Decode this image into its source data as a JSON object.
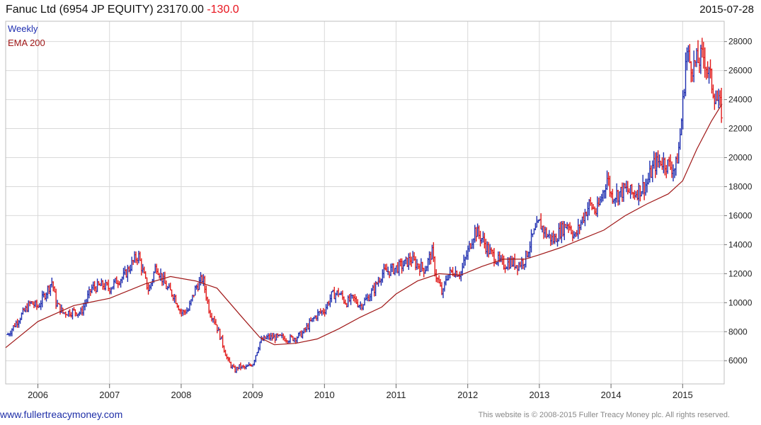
{
  "header": {
    "title_prefix": "Fanuc Ltd (6954 JP EQUITY) 23170.00",
    "change": "-130.0",
    "date": "2015-07-28"
  },
  "footer": {
    "website": "www.fullertreacymoney.com",
    "copyright": "This website is © 2008-2015 Fuller Treacy Money plc. All rights reserved."
  },
  "colors": {
    "up_bar": "#1f2fb0",
    "down_bar": "#e01818",
    "ema_line": "#a01818",
    "grid": "#d9d9d9",
    "change_text": "#e8141e"
  },
  "chart_data": {
    "type": "line",
    "subtype": "weekly high-low bars (up weeks blue, down weeks red) with 200 EMA overlay",
    "legend": [
      "Weekly",
      "EMA 200"
    ],
    "legend_position": "top-left",
    "grid": true,
    "x_ticks": [
      "2006",
      "2007",
      "2008",
      "2009",
      "2010",
      "2011",
      "2012",
      "2013",
      "2014",
      "2015"
    ],
    "x_range": [
      2005.55,
      2015.58
    ],
    "y_ticks": [
      6000,
      8000,
      10000,
      12000,
      14000,
      16000,
      18000,
      20000,
      22000,
      24000,
      26000,
      28000
    ],
    "y_axis_side": "right",
    "ylim": [
      4400,
      29400
    ],
    "series": [
      {
        "name": "Weekly",
        "x": [
          2005.58,
          2005.75,
          2005.9,
          2006.0,
          2006.1,
          2006.2,
          2006.25,
          2006.35,
          2006.5,
          2006.6,
          2006.75,
          2006.9,
          2007.0,
          2007.1,
          2007.2,
          2007.3,
          2007.4,
          2007.5,
          2007.55,
          2007.65,
          2007.75,
          2007.8,
          2007.9,
          2008.0,
          2008.1,
          2008.2,
          2008.3,
          2008.4,
          2008.45,
          2008.55,
          2008.65,
          2008.75,
          2008.8,
          2008.9,
          2009.0,
          2009.1,
          2009.2,
          2009.3,
          2009.4,
          2009.5,
          2009.6,
          2009.7,
          2009.8,
          2009.9,
          2010.0,
          2010.1,
          2010.2,
          2010.3,
          2010.4,
          2010.5,
          2010.6,
          2010.7,
          2010.8,
          2010.9,
          2011.0,
          2011.1,
          2011.2,
          2011.3,
          2011.4,
          2011.5,
          2011.55,
          2011.65,
          2011.7,
          2011.8,
          2011.9,
          2012.0,
          2012.1,
          2012.2,
          2012.3,
          2012.4,
          2012.5,
          2012.6,
          2012.7,
          2012.8,
          2012.9,
          2013.0,
          2013.1,
          2013.2,
          2013.3,
          2013.4,
          2013.5,
          2013.6,
          2013.7,
          2013.8,
          2013.9,
          2013.95,
          2014.0,
          2014.1,
          2014.2,
          2014.3,
          2014.4,
          2014.5,
          2014.6,
          2014.7,
          2014.8,
          2014.9,
          2014.95,
          2015.0,
          2015.05,
          2015.1,
          2015.15,
          2015.2,
          2015.3,
          2015.35,
          2015.4,
          2015.45,
          2015.5,
          2015.55
        ],
        "y": [
          7800,
          9000,
          10000,
          9700,
          10600,
          11500,
          10000,
          9300,
          9400,
          9300,
          11000,
          11200,
          11000,
          11500,
          11800,
          12600,
          13300,
          11500,
          10800,
          12600,
          11500,
          11000,
          10500,
          9300,
          9500,
          11000,
          11700,
          9300,
          9000,
          7600,
          6000,
          5300,
          5600,
          5500,
          5800,
          7300,
          7600,
          7600,
          7600,
          7500,
          7600,
          7900,
          8600,
          9200,
          9500,
          10500,
          10700,
          10000,
          10300,
          9800,
          10300,
          11000,
          12000,
          12200,
          12400,
          12600,
          13000,
          12600,
          12300,
          13500,
          12000,
          10500,
          11800,
          12200,
          12000,
          13500,
          15000,
          14400,
          13500,
          13000,
          12600,
          12800,
          12600,
          13000,
          14500,
          15500,
          14700,
          14300,
          15000,
          15500,
          14500,
          15800,
          16800,
          16200,
          17800,
          18700,
          17400,
          17500,
          17800,
          17500,
          17800,
          18200,
          19500,
          19800,
          19500,
          19200,
          20800,
          23500,
          27300,
          26600,
          26300,
          26600,
          27000,
          26000,
          25200,
          24300,
          23700,
          23170
        ],
        "color": "#1f2fb0"
      },
      {
        "name": "EMA 200",
        "x": [
          2005.55,
          2006.0,
          2006.5,
          2007.0,
          2007.5,
          2007.85,
          2008.2,
          2008.5,
          2008.85,
          2009.1,
          2009.3,
          2009.6,
          2009.9,
          2010.2,
          2010.5,
          2010.8,
          2011.0,
          2011.3,
          2011.6,
          2011.9,
          2012.2,
          2012.5,
          2012.8,
          2013.0,
          2013.3,
          2013.6,
          2013.9,
          2014.2,
          2014.5,
          2014.8,
          2015.0,
          2015.2,
          2015.4,
          2015.55
        ],
        "y": [
          6900,
          8700,
          9800,
          10300,
          11300,
          11800,
          11500,
          11000,
          9000,
          7600,
          7100,
          7200,
          7500,
          8200,
          9000,
          9700,
          10600,
          11500,
          12000,
          11900,
          12500,
          13000,
          13000,
          13300,
          13800,
          14400,
          15000,
          16000,
          16800,
          17500,
          18400,
          20600,
          22500,
          23700
        ],
        "color": "#a01818"
      }
    ]
  }
}
